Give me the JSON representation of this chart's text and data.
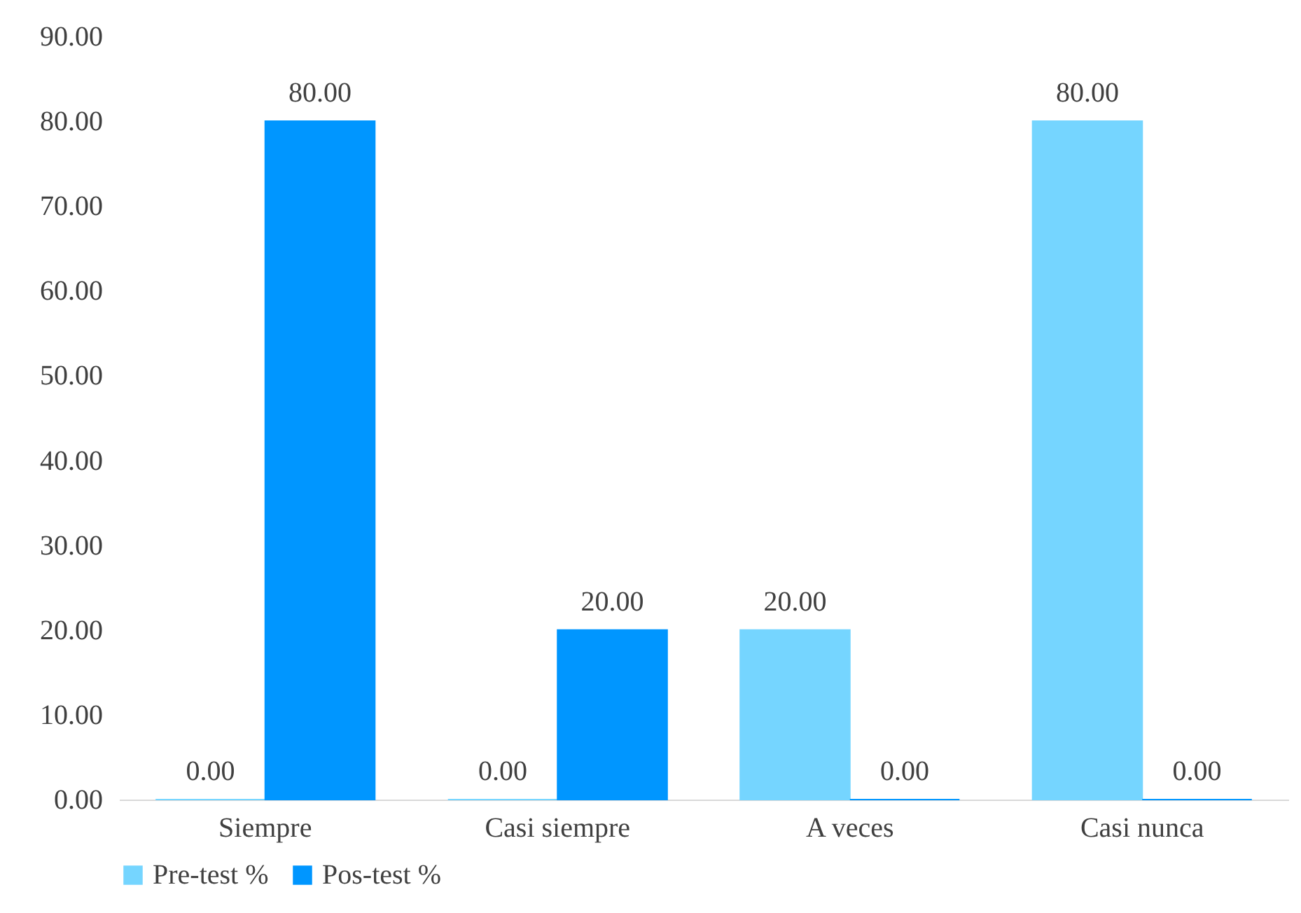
{
  "chart_data": {
    "type": "bar",
    "categories": [
      "Siempre",
      "Casi siempre",
      "A veces",
      "Casi nunca"
    ],
    "series": [
      {
        "name": "Pre-test %",
        "color": "#75d5ff",
        "values": [
          0,
          0,
          20,
          80
        ],
        "value_labels": [
          "0.00",
          "0.00",
          "20.00",
          "80.00"
        ]
      },
      {
        "name": "Pos-test %",
        "color": "#0096ff",
        "values": [
          80,
          20,
          0,
          0
        ],
        "value_labels": [
          "80.00",
          "20.00",
          "0.00",
          "0.00"
        ]
      }
    ],
    "ylim": [
      0,
      90
    ],
    "yticks": [
      {
        "value": 0,
        "label": "0.00"
      },
      {
        "value": 10,
        "label": "10.00"
      },
      {
        "value": 20,
        "label": "20.00"
      },
      {
        "value": 30,
        "label": "30.00"
      },
      {
        "value": 40,
        "label": "40.00"
      },
      {
        "value": 50,
        "label": "50.00"
      },
      {
        "value": 60,
        "label": "60.00"
      },
      {
        "value": 70,
        "label": "70.00"
      },
      {
        "value": 80,
        "label": "80.00"
      },
      {
        "value": 90,
        "label": "90.00"
      }
    ],
    "grid": false,
    "legend": "bottom"
  }
}
